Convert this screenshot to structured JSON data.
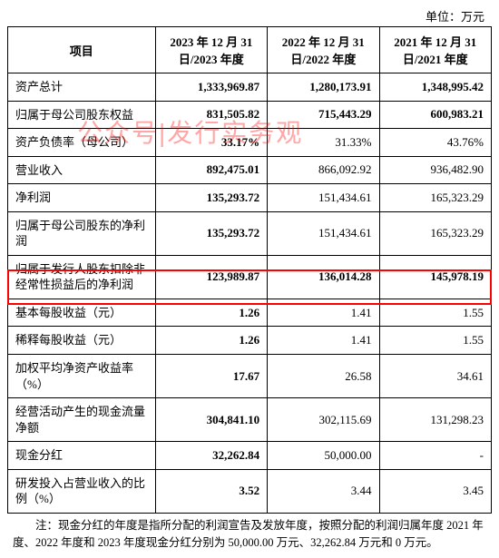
{
  "unit_label": "单位：万元",
  "watermark_text": "公众号|发行实务观",
  "headers": {
    "project": "项目",
    "col2023": "2023 年 12 月 31 日/2023 年度",
    "col2022": "2022 年 12 月 31 日/2022 年度",
    "col2021": "2021 年 12 月 31 日/2021 年度"
  },
  "rows": [
    {
      "label": "资产总计",
      "v2023": "1,333,969.87",
      "v2022": "1,280,173.91",
      "v2021": "1,348,995.42",
      "bold": true
    },
    {
      "label": "归属于母公司股东权益",
      "v2023": "831,505.82",
      "v2022": "715,443.29",
      "v2021": "600,983.21",
      "bold": true
    },
    {
      "label": "资产负债率（母公司）",
      "v2023": "33.17%",
      "v2022": "31.33%",
      "v2021": "43.76%",
      "bold2023": true
    },
    {
      "label": "营业收入",
      "v2023": "892,475.01",
      "v2022": "866,092.92",
      "v2021": "936,482.90",
      "bold2023": true
    },
    {
      "label": "净利润",
      "v2023": "135,293.72",
      "v2022": "151,434.61",
      "v2021": "165,323.29",
      "bold2023": true
    },
    {
      "label": "归属于母公司股东的净利润",
      "v2023": "135,293.72",
      "v2022": "151,434.61",
      "v2021": "165,323.29",
      "bold2023": true
    },
    {
      "label": "归属于发行人股东扣除非经常性损益后的净利润",
      "v2023": "123,989.87",
      "v2022": "136,014.28",
      "v2021": "145,978.19",
      "highlight": true,
      "bold": true
    },
    {
      "label": "基本每股收益（元）",
      "v2023": "1.26",
      "v2022": "1.41",
      "v2021": "1.55",
      "bold2023": true
    },
    {
      "label": "稀释每股收益（元）",
      "v2023": "1.26",
      "v2022": "1.41",
      "v2021": "1.55",
      "bold2023": true
    },
    {
      "label": "加权平均净资产收益率（%）",
      "v2023": "17.67",
      "v2022": "26.58",
      "v2021": "34.61",
      "bold2023": true
    },
    {
      "label": "经营活动产生的现金流量净额",
      "v2023": "304,841.10",
      "v2022": "302,115.69",
      "v2021": "131,298.23",
      "bold2023": true
    },
    {
      "label": "现金分红",
      "v2023": "32,262.84",
      "v2022": "50,000.00",
      "v2021": "-",
      "bold2023": true
    },
    {
      "label": "研发投入占营业收入的比例（%）",
      "v2023": "3.52",
      "v2022": "3.44",
      "v2021": "3.45",
      "bold2023": true
    }
  ],
  "footnote": "注：现金分红的年度是指所分配的利润宣告及发放年度，按照分配的利润归属年度 2021 年度、2022 年度和 2023 年度现金分红分别为 50,000.00 万元、32,262.84 万元和 0 万元。"
}
